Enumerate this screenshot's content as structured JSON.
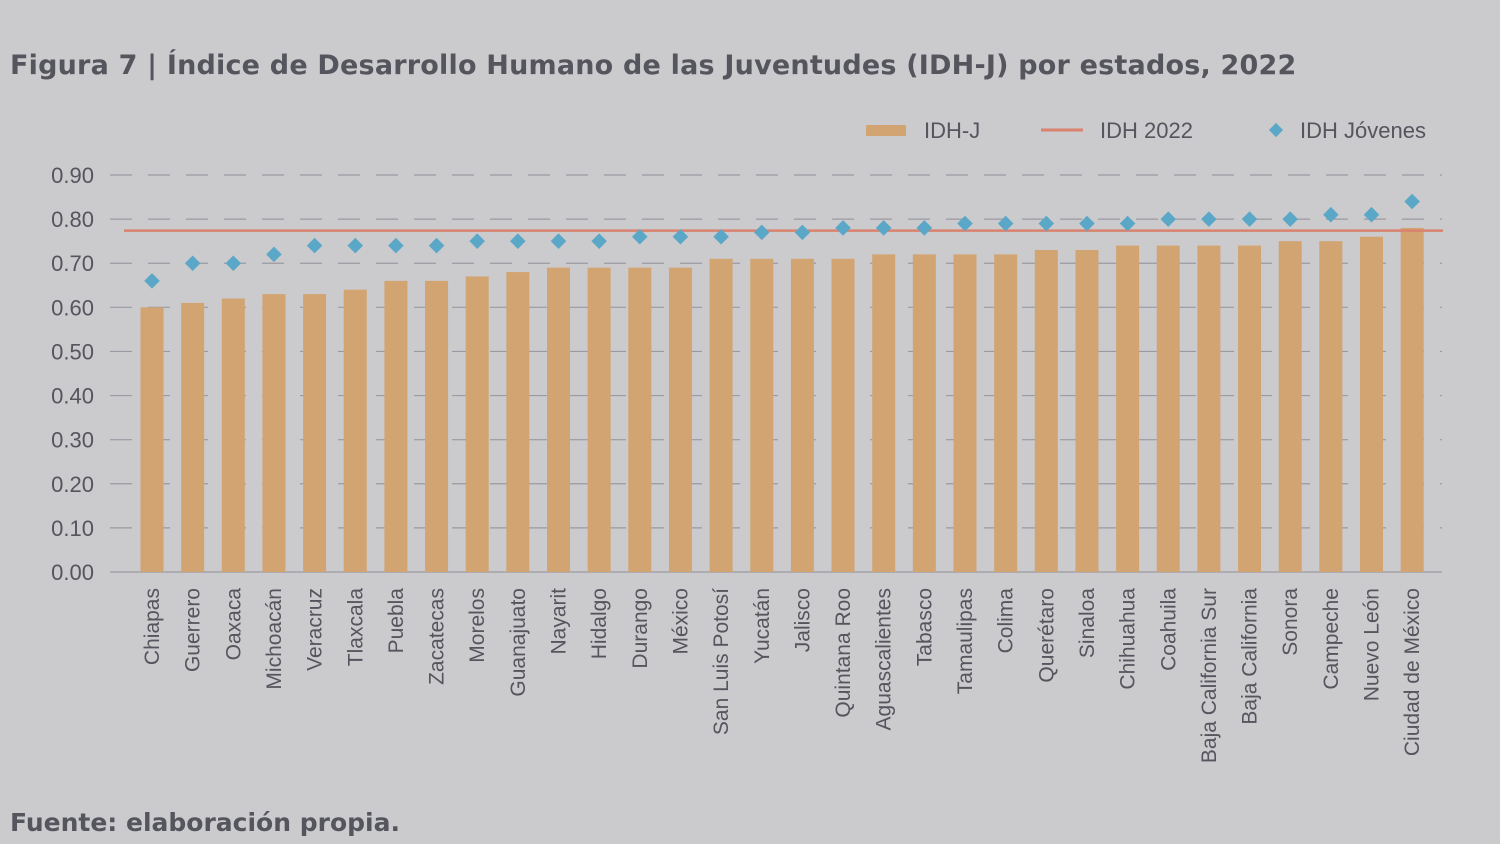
{
  "title": "Figura 7 | Índice de Desarrollo Humano de las Juventudes (IDH-J) por estados, 2022",
  "source": "Fuente: elaboración propia.",
  "colors": {
    "bar": "#d2a472",
    "reference_line": "#d9826e",
    "marker": "#5aa7c8",
    "grid": "#9a9aa2",
    "axis_text": "#55555e"
  },
  "chart_data": {
    "type": "bar",
    "categories": [
      "Chiapas",
      "Guerrero",
      "Oaxaca",
      "Michoacán",
      "Veracruz",
      "Tlaxcala",
      "Puebla",
      "Zacatecas",
      "Morelos",
      "Guanajuato",
      "Nayarit",
      "Hidalgo",
      "Durango",
      "México",
      "San Luis Potosí",
      "Yucatán",
      "Jalisco",
      "Quintana Roo",
      "Aguascalientes",
      "Tabasco",
      "Tamaulipas",
      "Colima",
      "Querétaro",
      "Sinaloa",
      "Chihuahua",
      "Coahuila",
      "Baja California Sur",
      "Baja California",
      "Sonora",
      "Campeche",
      "Nuevo León",
      "Ciudad de México"
    ],
    "series": [
      {
        "name": "IDH-J",
        "kind": "bar",
        "values": [
          0.6,
          0.61,
          0.62,
          0.63,
          0.63,
          0.64,
          0.66,
          0.66,
          0.67,
          0.68,
          0.69,
          0.69,
          0.69,
          0.69,
          0.71,
          0.71,
          0.71,
          0.71,
          0.72,
          0.72,
          0.72,
          0.72,
          0.73,
          0.73,
          0.74,
          0.74,
          0.74,
          0.74,
          0.75,
          0.75,
          0.76,
          0.78
        ]
      },
      {
        "name": "IDH 2022",
        "kind": "line",
        "value": 0.774
      },
      {
        "name": "IDH Jóvenes",
        "kind": "marker",
        "values": [
          0.66,
          0.7,
          0.7,
          0.72,
          0.74,
          0.74,
          0.74,
          0.74,
          0.75,
          0.75,
          0.75,
          0.75,
          0.76,
          0.76,
          0.76,
          0.77,
          0.77,
          0.78,
          0.78,
          0.78,
          0.79,
          0.79,
          0.79,
          0.79,
          0.79,
          0.8,
          0.8,
          0.8,
          0.8,
          0.81,
          0.81,
          0.84
        ]
      }
    ],
    "ylim": [
      0,
      0.9
    ],
    "yticks": [
      "0.00",
      "0.10",
      "0.20",
      "0.30",
      "0.40",
      "0.50",
      "0.60",
      "0.70",
      "0.80",
      "0.90"
    ],
    "ytick_values": [
      0,
      0.1,
      0.2,
      0.3,
      0.4,
      0.5,
      0.6,
      0.7,
      0.8,
      0.9
    ],
    "grid": "dashed horizontal",
    "legend_position": "top-right"
  }
}
